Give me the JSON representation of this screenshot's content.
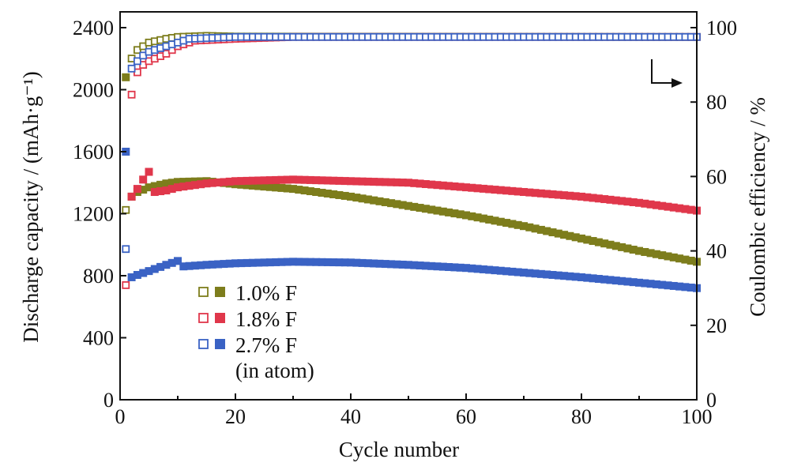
{
  "chart_data": {
    "type": "scatter",
    "xlabel": "Cycle number",
    "ylabel_left": "Discharge capacity / (mAh·g⁻¹)",
    "ylabel_right": "Coulombic efficiency / %",
    "xlim": [
      0,
      100
    ],
    "ylim_left": [
      0,
      2400
    ],
    "ylim_right": [
      0,
      100
    ],
    "x_ticks": [
      "0",
      "20",
      "40",
      "60",
      "80",
      "100"
    ],
    "y_left_ticks": [
      "0",
      "400",
      "800",
      "1200",
      "1600",
      "2000",
      "2400"
    ],
    "y_right_ticks": [
      "0",
      "20",
      "40",
      "60",
      "80",
      "100"
    ],
    "legend_note": "(in atom)",
    "series": [
      {
        "name": "1.0% F",
        "color": "#7d7d1c",
        "capacity": {
          "cycles": [
            1,
            2,
            3,
            5,
            8,
            10,
            15,
            20,
            30,
            40,
            50,
            60,
            70,
            80,
            90,
            100
          ],
          "values": [
            2080,
            1310,
            1340,
            1370,
            1395,
            1405,
            1410,
            1390,
            1360,
            1310,
            1250,
            1190,
            1120,
            1040,
            960,
            890
          ]
        },
        "efficiency": {
          "cycles": [
            1,
            2,
            3,
            4,
            5,
            8,
            10,
            15,
            20,
            100
          ],
          "values": [
            51,
            91.7,
            94,
            95,
            96,
            97,
            97.5,
            97.8,
            97.6,
            97.5
          ]
        }
      },
      {
        "name": "1.8% F",
        "color": "#e0374b",
        "capacity": {
          "cycles": [
            2,
            3,
            4,
            5,
            6,
            8,
            10,
            15,
            20,
            30,
            40,
            50,
            60,
            70,
            80,
            90,
            100
          ],
          "values": [
            1310,
            1360,
            1420,
            1470,
            1340,
            1350,
            1370,
            1395,
            1410,
            1420,
            1410,
            1400,
            1370,
            1340,
            1310,
            1270,
            1220
          ]
        },
        "efficiency": {
          "cycles": [
            1,
            2,
            3,
            4,
            5,
            8,
            10,
            13,
            20,
            30,
            100
          ],
          "values": [
            30.8,
            82,
            88,
            90,
            91,
            93,
            95,
            96.5,
            97,
            97.5,
            97.5
          ]
        }
      },
      {
        "name": "2.7% F",
        "color": "#3a62c4",
        "capacity": {
          "cycles": [
            1,
            2,
            3,
            5,
            8,
            10,
            11,
            15,
            20,
            30,
            40,
            50,
            60,
            70,
            80,
            90,
            100
          ],
          "values": [
            1600,
            790,
            805,
            830,
            870,
            895,
            860,
            870,
            880,
            890,
            885,
            870,
            850,
            820,
            790,
            755,
            720
          ]
        },
        "efficiency": {
          "cycles": [
            1,
            2,
            3,
            4,
            5,
            8,
            10,
            12,
            20,
            100
          ],
          "values": [
            40.5,
            89,
            91,
            92.5,
            93.5,
            95,
            96,
            97,
            97.5,
            97.5
          ]
        }
      }
    ]
  }
}
